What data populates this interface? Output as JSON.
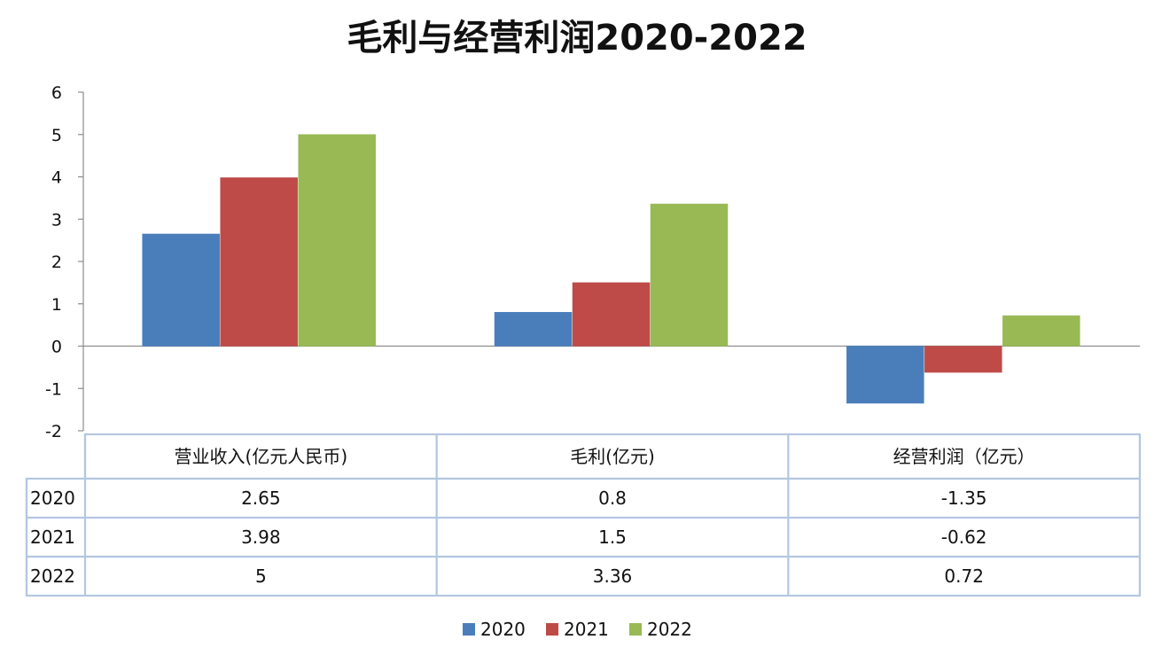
{
  "chart_data": {
    "type": "bar",
    "title": "毛利与经营利润2020-2022",
    "categories": [
      "营业收入(亿元人民币)",
      "毛利(亿元)",
      "经营利润（亿元）"
    ],
    "series": [
      {
        "name": "2020",
        "values": [
          2.65,
          0.8,
          -1.35
        ],
        "value_labels": [
          "2.65",
          "0.8",
          "-1.35"
        ],
        "color": "#4a7ebb"
      },
      {
        "name": "2021",
        "values": [
          3.98,
          1.5,
          -0.62
        ],
        "value_labels": [
          "3.98",
          "1.5",
          "-0.62"
        ],
        "color": "#be4b48"
      },
      {
        "name": "2022",
        "values": [
          5,
          3.36,
          0.72
        ],
        "value_labels": [
          "5",
          "3.36",
          "0.72"
        ],
        "color": "#98b954"
      }
    ],
    "ylim": [
      -2,
      6
    ],
    "yticks": [
      "6",
      "5",
      "4",
      "3",
      "2",
      "1",
      "0",
      "-1",
      "-2"
    ],
    "xlabel": "",
    "ylabel": "",
    "grid": false,
    "data_table": true,
    "legend": "bottom"
  }
}
